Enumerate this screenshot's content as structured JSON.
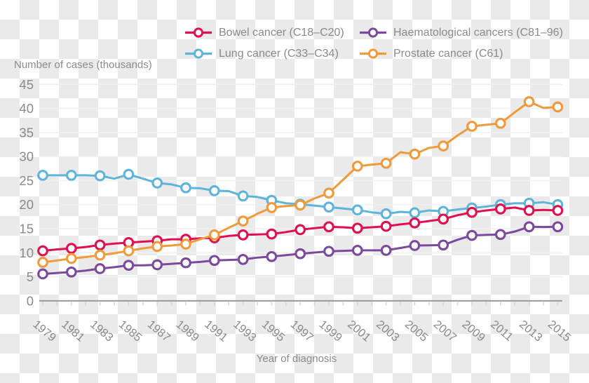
{
  "axes": {
    "y_title": "Number of cases (thousands)",
    "x_title": "Year of diagnosis",
    "y_ticks": [
      0,
      5,
      10,
      15,
      20,
      25,
      30,
      35,
      40,
      45
    ],
    "x_tick_years": [
      1979,
      1981,
      1983,
      1985,
      1987,
      1989,
      1991,
      1993,
      1995,
      1997,
      1999,
      2001,
      2003,
      2005,
      2007,
      2009,
      2011,
      2013,
      2015
    ],
    "text_color": "#8a8a8a"
  },
  "legend": {
    "items": [
      {
        "label": "Bowel cancer (C18–C20)",
        "color": "#e0104e",
        "series_key": "bowel"
      },
      {
        "label": "Haematological cancers (C81–96)",
        "color": "#7b4a9e",
        "series_key": "haematological"
      },
      {
        "label": "Lung cancer (C33–C34)",
        "color": "#5eb4da",
        "series_key": "lung"
      },
      {
        "label": "Prostate cancer (C61)",
        "color": "#ef9b3b",
        "series_key": "prostate"
      }
    ]
  },
  "chart_data": {
    "type": "line",
    "title": "",
    "xlabel": "Year of diagnosis",
    "ylabel": "Number of cases (thousands)",
    "ylim": [
      0,
      45
    ],
    "xlim": [
      1979,
      2015
    ],
    "grid": "horizontal",
    "legend_position": "top",
    "marker_style": "open circle at every second (labelled) year",
    "x": [
      1979,
      1980,
      1981,
      1982,
      1983,
      1984,
      1985,
      1986,
      1987,
      1988,
      1989,
      1990,
      1991,
      1992,
      1993,
      1994,
      1995,
      1996,
      1997,
      1998,
      1999,
      2000,
      2001,
      2002,
      2003,
      2004,
      2005,
      2006,
      2007,
      2008,
      2009,
      2010,
      2011,
      2012,
      2013,
      2014,
      2015
    ],
    "series": [
      {
        "name": "Bowel cancer (C18–C20)",
        "key": "bowel",
        "color": "#e0104e",
        "values": [
          10.4,
          10.7,
          10.9,
          11.2,
          11.6,
          11.9,
          12.1,
          12.3,
          12.5,
          12.8,
          12.8,
          13.0,
          13.1,
          13.5,
          13.7,
          13.8,
          13.9,
          14.3,
          14.8,
          15.1,
          15.4,
          15.3,
          15.1,
          15.3,
          15.5,
          15.9,
          16.2,
          16.6,
          17.0,
          17.8,
          18.4,
          18.8,
          19.1,
          19.4,
          18.8,
          18.9,
          18.8
        ]
      },
      {
        "name": "Haematological cancers (C81–96)",
        "key": "haematological",
        "color": "#7b4a9e",
        "values": [
          5.6,
          5.8,
          6.0,
          6.3,
          6.7,
          7.0,
          7.4,
          7.4,
          7.5,
          7.7,
          7.9,
          8.1,
          8.4,
          8.5,
          8.6,
          9.0,
          9.2,
          9.5,
          9.8,
          10.05,
          10.3,
          10.4,
          10.5,
          10.5,
          10.5,
          11.0,
          11.5,
          11.55,
          11.6,
          12.7,
          13.6,
          13.7,
          13.8,
          14.4,
          15.4,
          15.35,
          15.4
        ]
      },
      {
        "name": "Lung cancer (C33–C34)",
        "key": "lung",
        "color": "#5eb4da",
        "values": [
          26.1,
          26.1,
          26.1,
          26.1,
          26.0,
          25.4,
          26.3,
          25.4,
          24.5,
          24.2,
          23.5,
          23.4,
          22.9,
          22.8,
          21.8,
          21.6,
          20.9,
          20.3,
          20.1,
          19.8,
          19.5,
          19.2,
          18.9,
          18.4,
          18.1,
          18.5,
          18.3,
          18.8,
          18.6,
          19.0,
          19.3,
          19.6,
          20.0,
          20.3,
          20.3,
          20.5,
          20.0
        ]
      },
      {
        "name": "Prostate cancer (C61)",
        "key": "prostate",
        "color": "#ef9b3b",
        "values": [
          8.0,
          8.4,
          8.8,
          9.1,
          9.5,
          9.9,
          10.4,
          10.9,
          11.3,
          11.5,
          11.8,
          12.8,
          13.7,
          15.2,
          16.6,
          18.1,
          19.4,
          19.7,
          19.9,
          21.3,
          22.4,
          25.2,
          28.0,
          28.3,
          28.6,
          30.9,
          30.5,
          31.8,
          32.2,
          34.4,
          36.3,
          36.6,
          36.9,
          39.2,
          41.4,
          40.1,
          40.3
        ]
      }
    ]
  }
}
